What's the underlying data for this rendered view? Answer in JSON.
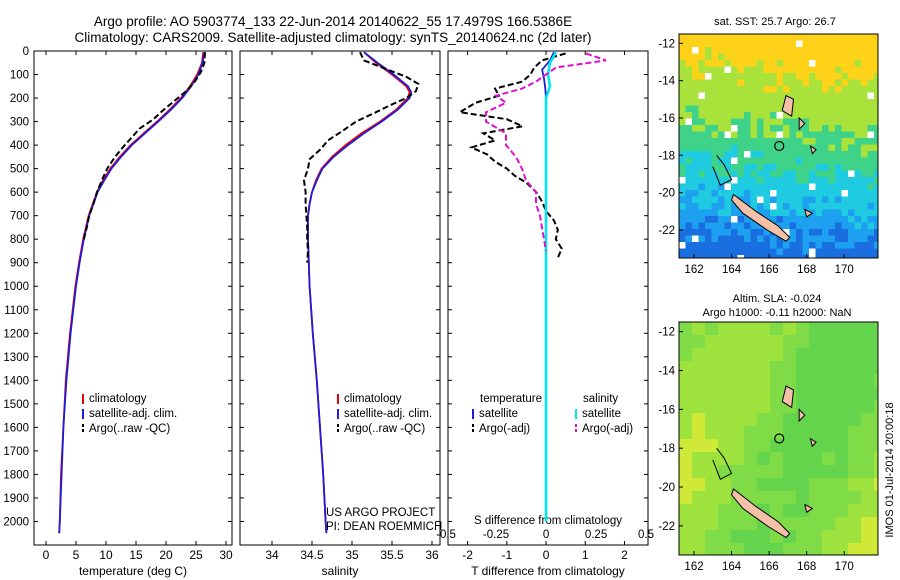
{
  "header": {
    "line1": "Argo profile: AO 5903774_133 22-Jun-2014 20140622_55 17.4979S 166.5386E",
    "line2": "Climatology: CARS2009. Satellite-adjusted climatology: synTS_20140624.nc (2d later)"
  },
  "colors": {
    "climatology": "#e8000b",
    "satellite": "#1d1dd8",
    "argo": "#000000",
    "t_sat": "#1d1dd8",
    "s_sat": "#00e5ee",
    "s_argo": "#e010d0",
    "panel_bg": "#ffffff"
  },
  "chart_data": [
    {
      "id": "temperature",
      "type": "line",
      "xlabel": "temperature (deg C)",
      "ylabel": "",
      "xlim": [
        -2,
        31
      ],
      "ylim": [
        2100,
        0
      ],
      "xticks": [
        0,
        5,
        10,
        15,
        20,
        25,
        30
      ],
      "xtick_labels": [
        "0",
        "5",
        "10",
        "15",
        "20",
        "25",
        "30"
      ],
      "yticks": [
        0,
        100,
        200,
        300,
        400,
        500,
        600,
        700,
        800,
        900,
        1000,
        1100,
        1200,
        1300,
        1400,
        1500,
        1600,
        1700,
        1800,
        1900,
        2000
      ],
      "ytick_labels": [
        "0",
        "100",
        "200",
        "300",
        "400",
        "500",
        "600",
        "700",
        "800",
        "900",
        "1000",
        "1100",
        "1200",
        "1300",
        "1400",
        "1500",
        "1600",
        "1700",
        "1800",
        "1900",
        "2000"
      ],
      "legend": [
        "climatology",
        "satellite-adj. clim.",
        "Argo(..raw -QC)"
      ],
      "series": [
        {
          "name": "climatology",
          "depth": [
            5,
            50,
            100,
            150,
            200,
            250,
            300,
            350,
            400,
            450,
            500,
            550,
            600,
            650,
            700,
            800,
            900,
            1000,
            1200,
            1400,
            1600,
            1800,
            2000,
            2050
          ],
          "values": [
            26.2,
            26.0,
            25.2,
            24.0,
            22.5,
            20.6,
            18.5,
            16.3,
            14.1,
            12.3,
            10.7,
            9.5,
            8.5,
            7.8,
            7.1,
            6.2,
            5.5,
            4.9,
            4.0,
            3.3,
            2.9,
            2.5,
            2.3,
            2.2
          ]
        },
        {
          "name": "satellite-adj. clim.",
          "depth": [
            5,
            50,
            100,
            150,
            200,
            250,
            300,
            350,
            400,
            450,
            500,
            550,
            600,
            650,
            700,
            800,
            900,
            1000,
            1200,
            1400,
            1600,
            1800,
            2000,
            2050
          ],
          "values": [
            26.4,
            26.1,
            25.4,
            24.2,
            22.7,
            20.8,
            18.7,
            16.5,
            14.3,
            12.5,
            10.9,
            9.7,
            8.6,
            7.9,
            7.2,
            6.3,
            5.6,
            5.0,
            4.1,
            3.4,
            2.9,
            2.6,
            2.3,
            2.2
          ]
        },
        {
          "name": "Argo(..raw -QC)",
          "depth": [
            5,
            50,
            90,
            130,
            170,
            210,
            250,
            290,
            330,
            370,
            410,
            450,
            500,
            550,
            600,
            650,
            700,
            750,
            800
          ],
          "values": [
            26.5,
            26.4,
            25.8,
            24.8,
            23.4,
            21.5,
            19.6,
            17.9,
            15.6,
            14.2,
            12.8,
            11.5,
            10.2,
            9.3,
            8.5,
            7.9,
            7.2,
            6.8,
            6.3
          ]
        }
      ],
      "annotation": []
    },
    {
      "id": "salinity",
      "type": "line",
      "xlabel": "salinity",
      "ylabel": "",
      "xlim": [
        33.6,
        36.1
      ],
      "ylim": [
        2100,
        0
      ],
      "xticks": [
        34,
        34.5,
        35,
        35.5,
        36
      ],
      "xtick_labels": [
        "34",
        "34.5",
        "35",
        "35.5",
        "36"
      ],
      "legend": [
        "climatology",
        "satellite-adj. clim.",
        "Argo(..raw -QC)"
      ],
      "series": [
        {
          "name": "climatology",
          "depth": [
            5,
            50,
            100,
            150,
            175,
            200,
            250,
            300,
            350,
            400,
            450,
            500,
            550,
            600,
            650,
            700,
            800,
            1000,
            1200,
            1400,
            1600,
            1800,
            2000,
            2050
          ],
          "values": [
            35.15,
            35.3,
            35.5,
            35.68,
            35.72,
            35.7,
            35.55,
            35.35,
            35.12,
            34.92,
            34.75,
            34.62,
            34.55,
            34.5,
            34.47,
            34.45,
            34.45,
            34.47,
            34.51,
            34.56,
            34.6,
            34.64,
            34.67,
            34.68
          ]
        },
        {
          "name": "satellite-adj. clim.",
          "depth": [
            5,
            50,
            100,
            150,
            175,
            200,
            250,
            300,
            350,
            400,
            450,
            500,
            550,
            600,
            650,
            700,
            800,
            1000,
            1200,
            1400,
            1600,
            1800,
            2000,
            2050
          ],
          "values": [
            35.15,
            35.32,
            35.52,
            35.7,
            35.74,
            35.72,
            35.57,
            35.37,
            35.15,
            34.95,
            34.77,
            34.63,
            34.56,
            34.5,
            34.47,
            34.45,
            34.45,
            34.47,
            34.51,
            34.56,
            34.6,
            34.64,
            34.67,
            34.68
          ]
        },
        {
          "name": "Argo(..raw -QC)",
          "depth": [
            5,
            40,
            80,
            110,
            140,
            170,
            200,
            230,
            260,
            300,
            340,
            380,
            420,
            460,
            500,
            550,
            600,
            650,
            700,
            750,
            800,
            850,
            900
          ],
          "values": [
            35.1,
            35.15,
            35.45,
            35.68,
            35.83,
            35.8,
            35.68,
            35.48,
            35.3,
            35.05,
            34.88,
            34.7,
            34.6,
            34.47,
            34.45,
            34.4,
            34.42,
            34.42,
            34.43,
            34.44,
            34.44,
            34.45,
            34.44
          ]
        }
      ],
      "annotation": [
        "US ARGO PROJECT",
        "PI: DEAN ROEMMICH"
      ]
    },
    {
      "id": "differences",
      "type": "line",
      "xlabel": "T difference from climatology",
      "top_label": "S difference from climatology",
      "xlim": [
        -2.5,
        2.6
      ],
      "ylim": [
        2100,
        0
      ],
      "xticks": [
        -2,
        -1,
        0,
        1,
        2
      ],
      "xtick_labels": [
        "-2",
        "-1",
        "0",
        "1",
        "2"
      ],
      "sticks": [
        -0.5,
        -0.25,
        0,
        0.25,
        0.5
      ],
      "stick_labels": [
        "-0.5",
        "-0.25",
        "0",
        "0.25",
        "0.5"
      ],
      "legend_groups": [
        {
          "title": "temperature",
          "items": [
            "satellite",
            "Argo(-adj)"
          ]
        },
        {
          "title": "salinity",
          "items": [
            "satellite",
            "Argo(-adj)"
          ]
        }
      ],
      "series": [
        {
          "name": "temperature satellite",
          "depth": [
            5,
            40,
            80,
            120,
            160,
            200,
            300,
            500,
            800,
            1200,
            2000
          ],
          "values": [
            0.2,
            0.1,
            -0.1,
            -0.05,
            -0.02,
            0,
            0,
            0,
            0,
            0,
            0
          ]
        },
        {
          "name": "temperature Argo(-adj)",
          "depth": [
            10,
            40,
            70,
            100,
            130,
            160,
            190,
            220,
            260,
            290,
            320,
            350,
            380,
            410,
            440,
            470,
            500,
            530,
            560,
            600,
            640,
            680,
            720,
            760,
            800,
            840,
            880
          ],
          "values": [
            0.5,
            -0.1,
            -0.3,
            -0.4,
            -0.6,
            -1.3,
            -1.2,
            -1.8,
            -2.2,
            -1.0,
            -0.6,
            -1.6,
            -1.3,
            -1.9,
            -1.5,
            -1.3,
            -1.0,
            -0.8,
            -0.5,
            -0.25,
            -0.1,
            0,
            0.2,
            0.3,
            0.25,
            0.4,
            0.3
          ]
        },
        {
          "name": "salinity satellite",
          "depth": [
            5,
            50,
            100,
            150,
            200,
            300,
            500,
            800,
            1200,
            2000
          ],
          "values": [
            0.05,
            0.02,
            0.01,
            0.02,
            0,
            0,
            0,
            0,
            0,
            0
          ]
        },
        {
          "name": "salinity Argo(-adj)",
          "depth": [
            10,
            40,
            70,
            100,
            130,
            160,
            190,
            220,
            260,
            300,
            350,
            400,
            450,
            500,
            550,
            600,
            650,
            700,
            750,
            800,
            850
          ],
          "values": [
            0.2,
            0.3,
            0.05,
            0.0,
            -0.05,
            -0.12,
            -0.25,
            -0.2,
            -0.3,
            -0.3,
            -0.2,
            -0.2,
            -0.15,
            -0.12,
            -0.1,
            -0.05,
            -0.05,
            -0.03,
            -0.02,
            -0.01,
            0.0
          ]
        }
      ]
    }
  ],
  "maps": [
    {
      "id": "sst",
      "title_line1": "sat. SST: 25.7 Argo: 26.7",
      "title_line2": "",
      "lat_ticks": [
        "-12",
        "-14",
        "-16",
        "-18",
        "-20",
        "-22"
      ],
      "lon_ticks": [
        "162",
        "164",
        "166",
        "168",
        "170"
      ]
    },
    {
      "id": "sla",
      "title_line1": "Altim. SLA: -0.024",
      "title_line2": "Argo h1000: -0.11 h2000: NaN",
      "lat_ticks": [
        "-12",
        "-14",
        "-16",
        "-18",
        "-20",
        "-22"
      ],
      "lon_ticks": [
        "162",
        "164",
        "166",
        "168",
        "170"
      ]
    }
  ],
  "footer": {
    "stamp": "IMOS 01-Jul-2014 20:00:18"
  }
}
